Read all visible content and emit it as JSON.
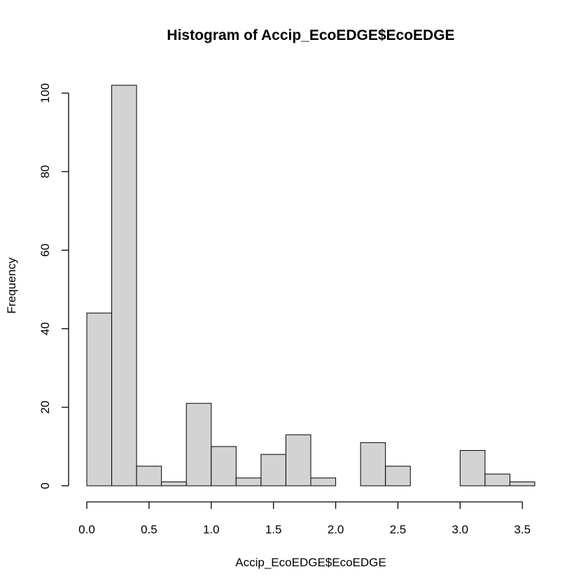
{
  "chart_data": {
    "type": "bar",
    "title": "Histogram of Accip_EcoEDGE$EcoEDGE",
    "xlabel": "Accip_EcoEDGE$EcoEDGE",
    "ylabel": "Frequency",
    "bin_edges": [
      0.0,
      0.2,
      0.4,
      0.6,
      0.8,
      1.0,
      1.2,
      1.4,
      1.6,
      1.8,
      2.0,
      2.2,
      2.4,
      2.6,
      2.8,
      3.0,
      3.2,
      3.4,
      3.6
    ],
    "values": [
      44,
      102,
      5,
      1,
      21,
      10,
      2,
      8,
      13,
      2,
      0,
      11,
      5,
      0,
      0,
      9,
      3,
      1
    ],
    "xlim": [
      0,
      3.6
    ],
    "ylim": [
      0,
      100
    ],
    "xticks": [
      0.0,
      0.5,
      1.0,
      1.5,
      2.0,
      2.5,
      3.0,
      3.5
    ],
    "xtick_labels": [
      "0.0",
      "0.5",
      "1.0",
      "1.5",
      "2.0",
      "2.5",
      "3.0",
      "3.5"
    ],
    "yticks": [
      0,
      20,
      40,
      60,
      80,
      100
    ],
    "ytick_labels": [
      "0",
      "20",
      "40",
      "60",
      "80",
      "100"
    ],
    "grid": false,
    "bar_color": "#d3d3d3",
    "edge_color": "#000000"
  }
}
